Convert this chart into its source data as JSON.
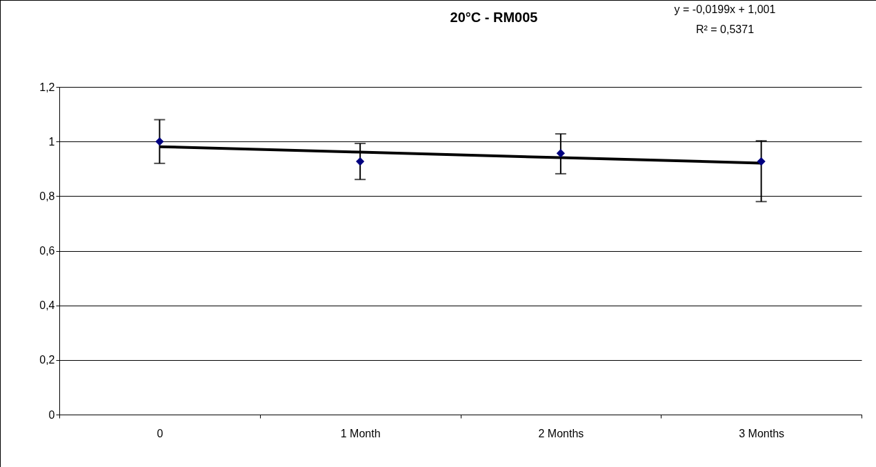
{
  "chart_data": {
    "type": "scatter",
    "title": "20°C -  RM005",
    "annotations": [
      "y = -0,0199x + 1,001",
      "R² = 0,5371"
    ],
    "categories": [
      "0",
      "1 Month",
      "2 Months",
      "3 Months"
    ],
    "series": [
      {
        "color": "#000080",
        "values": [
          1.0,
          0.927,
          0.957,
          0.927
        ],
        "errors": [
          0.08,
          [
            0.861,
            0.993
          ],
          [
            0.882,
            1.028
          ],
          [
            0.78,
            1.003
          ]
        ],
        "marker": "diamond"
      },
      {
        "type": "line",
        "color": "#000000",
        "values": [
          0.981,
          0.961,
          0.941,
          0.921
        ],
        "marker": "none"
      }
    ],
    "ylim": [
      0,
      1.2
    ],
    "yticks": [
      0,
      {
        "value": 0.2,
        "label": "0,2"
      },
      {
        "value": 0.4,
        "label": "0,4"
      },
      {
        "value": 0.6,
        "label": "0,6"
      },
      {
        "value": 0.8,
        "label": "0,8"
      },
      1,
      {
        "value": 1.2,
        "label": "1,2"
      }
    ],
    "grid": "y"
  }
}
